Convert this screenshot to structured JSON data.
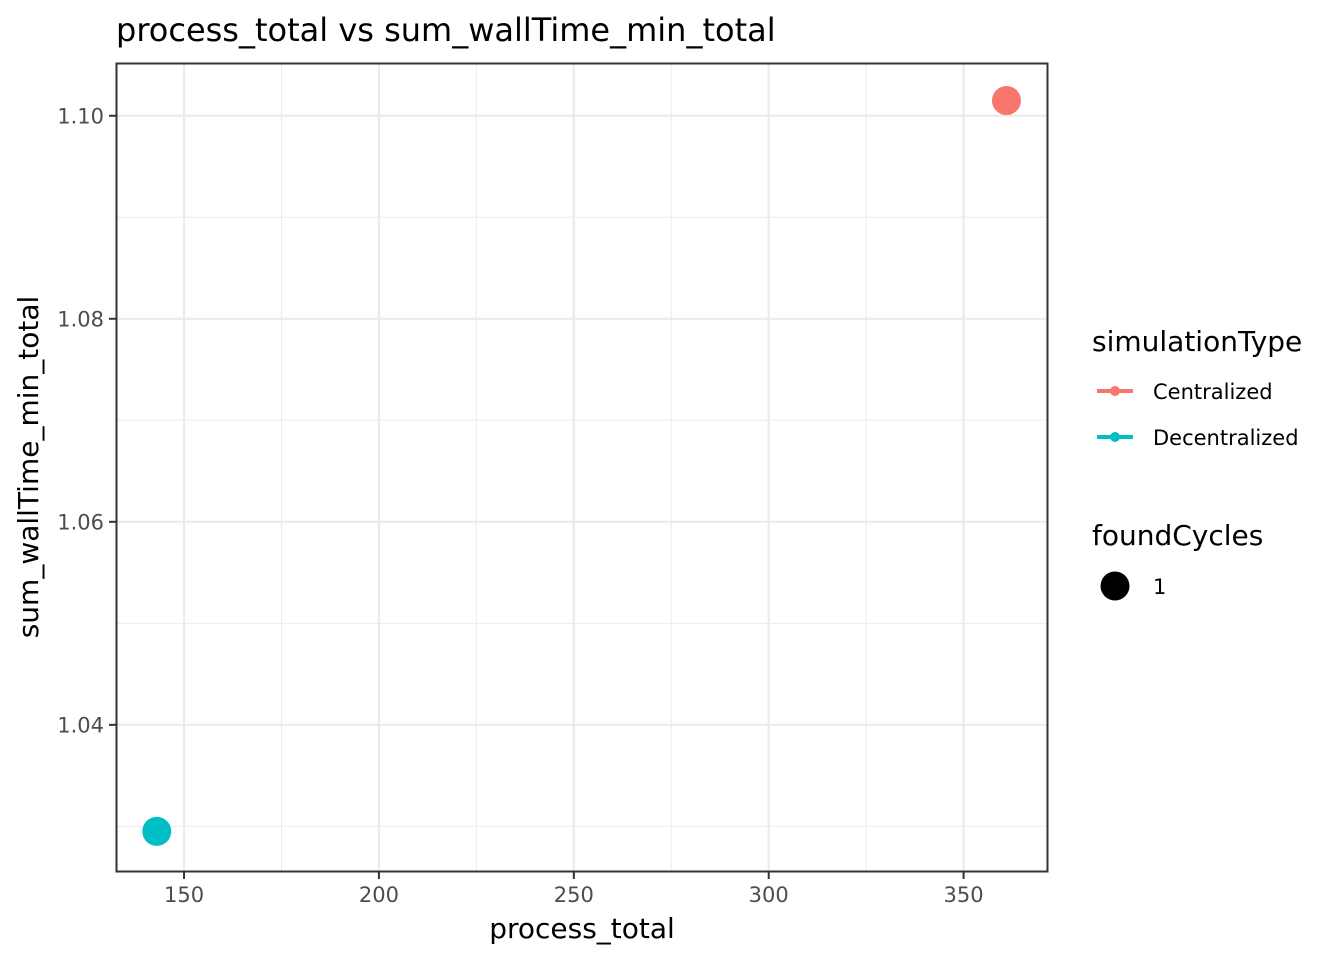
{
  "chart_data": {
    "type": "scatter",
    "title": "process_total  vs  sum_wallTime_min_total",
    "xlabel": "process_total",
    "ylabel": "sum_wallTime_min_total",
    "xlim": [
      132.8,
      371.4
    ],
    "ylim": [
      1.0256,
      1.1051
    ],
    "x_ticks": [
      150,
      200,
      250,
      300,
      350
    ],
    "x_tick_labels": [
      "150",
      "200",
      "250",
      "300",
      "350"
    ],
    "y_ticks": [
      1.04,
      1.06,
      1.08,
      1.1
    ],
    "y_tick_labels": [
      "1.04",
      "1.06",
      "1.08",
      "1.10"
    ],
    "grid": true,
    "legend_placement": "right",
    "series": [
      {
        "name": "Centralized",
        "color": "#F8766D",
        "points": [
          {
            "x": 361,
            "y": 1.1015
          }
        ]
      },
      {
        "name": "Decentralized",
        "color": "#00BFC4",
        "points": [
          {
            "x": 143,
            "y": 1.0295
          }
        ]
      }
    ],
    "legends": [
      {
        "title": "simulationType",
        "entries": [
          {
            "label": "Centralized",
            "color": "#F8766D"
          },
          {
            "label": "Decentralized",
            "color": "#00BFC4"
          }
        ]
      },
      {
        "title": "foundCycles",
        "entries": [
          {
            "label": "1",
            "color": "#000000"
          }
        ]
      }
    ]
  }
}
